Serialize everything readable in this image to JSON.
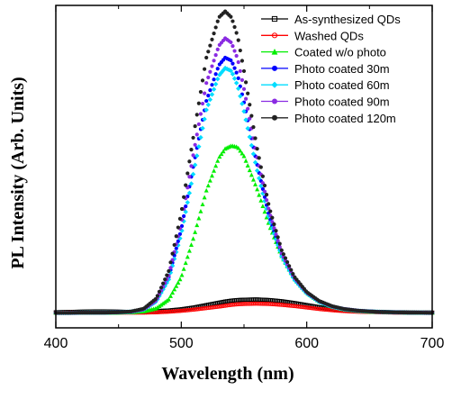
{
  "chart_data": {
    "type": "scatter",
    "title": "",
    "xlabel": "Wavelength (nm)",
    "ylabel": "PL Intensity (Arb. Units)",
    "xlim": [
      400,
      700
    ],
    "ylim": [
      -0.5,
      10.3
    ],
    "x_ticks": [
      "400",
      "500",
      "600",
      "700"
    ],
    "y_ticks_labeled": false,
    "grid": false,
    "legend_position": "top-right",
    "x": [
      400,
      410,
      420,
      430,
      440,
      450,
      460,
      470,
      480,
      490,
      500,
      510,
      520,
      530,
      535,
      540,
      545,
      550,
      560,
      570,
      580,
      590,
      600,
      610,
      620,
      630,
      640,
      650,
      660,
      670,
      680,
      690,
      700
    ],
    "series": [
      {
        "name": "As-synthesized QDs",
        "color": "#000000",
        "marker": "open-square",
        "values": [
          0.02,
          0.03,
          0.04,
          0.05,
          0.05,
          0.04,
          0.03,
          0.04,
          0.06,
          0.08,
          0.12,
          0.18,
          0.26,
          0.34,
          0.38,
          0.41,
          0.43,
          0.44,
          0.45,
          0.43,
          0.39,
          0.33,
          0.26,
          0.19,
          0.13,
          0.09,
          0.06,
          0.04,
          0.03,
          0.02,
          0.02,
          0.01,
          0.01
        ]
      },
      {
        "name": "Washed QDs",
        "color": "#ff0000",
        "marker": "open-circle",
        "values": [
          0.0,
          0.01,
          0.01,
          0.01,
          0.01,
          0.01,
          0.01,
          0.01,
          0.02,
          0.04,
          0.07,
          0.11,
          0.16,
          0.21,
          0.24,
          0.27,
          0.29,
          0.3,
          0.31,
          0.3,
          0.27,
          0.23,
          0.18,
          0.13,
          0.09,
          0.06,
          0.04,
          0.03,
          0.02,
          0.01,
          0.01,
          0.01,
          0.0
        ]
      },
      {
        "name": "Coated w/o photo",
        "color": "#00ee00",
        "marker": "filled-triangle",
        "values": [
          0.0,
          0.0,
          0.01,
          0.01,
          0.01,
          0.01,
          0.02,
          0.05,
          0.15,
          0.45,
          1.2,
          2.55,
          4.1,
          5.2,
          5.5,
          5.6,
          5.55,
          5.25,
          4.2,
          2.95,
          1.9,
          1.15,
          0.67,
          0.38,
          0.21,
          0.12,
          0.07,
          0.04,
          0.03,
          0.02,
          0.01,
          0.0,
          0.0
        ]
      },
      {
        "name": "Photo coated 30m",
        "color": "#0000ff",
        "marker": "filled-circle",
        "values": [
          0.0,
          0.0,
          0.01,
          0.01,
          0.01,
          0.02,
          0.04,
          0.12,
          0.4,
          1.2,
          2.8,
          5.0,
          7.1,
          8.3,
          8.55,
          8.45,
          7.95,
          7.05,
          5.05,
          3.25,
          1.95,
          1.15,
          0.67,
          0.38,
          0.22,
          0.13,
          0.08,
          0.05,
          0.03,
          0.02,
          0.01,
          0.01,
          0.0
        ]
      },
      {
        "name": "Photo coated 60m",
        "color": "#00ddff",
        "marker": "filled-diamond",
        "values": [
          0.0,
          0.0,
          0.01,
          0.01,
          0.01,
          0.02,
          0.04,
          0.11,
          0.38,
          1.12,
          2.65,
          4.75,
          6.8,
          7.95,
          8.2,
          8.1,
          7.6,
          6.75,
          4.85,
          3.15,
          1.9,
          1.12,
          0.65,
          0.37,
          0.21,
          0.12,
          0.07,
          0.05,
          0.03,
          0.02,
          0.01,
          0.01,
          0.0
        ]
      },
      {
        "name": "Photo coated 90m",
        "color": "#8a2be2",
        "marker": "filled-circle",
        "values": [
          0.0,
          0.0,
          0.01,
          0.01,
          0.01,
          0.02,
          0.04,
          0.12,
          0.42,
          1.25,
          3.0,
          5.4,
          7.7,
          8.95,
          9.2,
          9.05,
          8.5,
          7.5,
          5.3,
          3.4,
          2.0,
          1.18,
          0.68,
          0.39,
          0.22,
          0.13,
          0.08,
          0.05,
          0.03,
          0.02,
          0.01,
          0.01,
          0.0
        ]
      },
      {
        "name": "Photo coated 120m",
        "color": "#222222",
        "marker": "filled-circle",
        "values": [
          0.0,
          0.0,
          0.01,
          0.01,
          0.01,
          0.02,
          0.05,
          0.14,
          0.48,
          1.4,
          3.35,
          6.0,
          8.55,
          9.9,
          10.1,
          9.9,
          9.25,
          8.1,
          5.6,
          3.55,
          2.1,
          1.22,
          0.7,
          0.4,
          0.23,
          0.13,
          0.08,
          0.05,
          0.03,
          0.02,
          0.01,
          0.01,
          0.0
        ]
      }
    ]
  }
}
